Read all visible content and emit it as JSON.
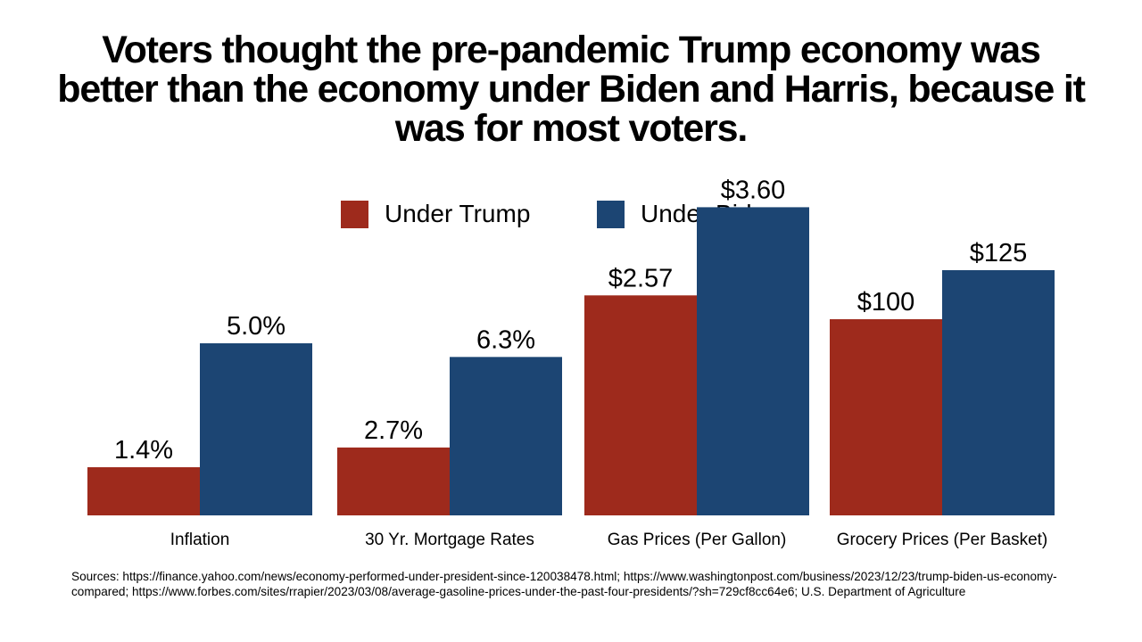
{
  "title_lines": [
    "Voters thought the pre-pandemic Trump economy was",
    "better than the economy under Biden and Harris, because it",
    "was for most voters."
  ],
  "sources": "Sources:  https://finance.yahoo.com/news/economy-performed-under-president-since-120038478.html; https://www.washingtonpost.com/business/2023/12/23/trump-biden-us-economy-compared; https://www.forbes.com/sites/rrapier/2023/03/08/average-gasoline-prices-under-the-past-four-presidents/?sh=729cf8cc64e6; U.S. Department of Agriculture",
  "colors": {
    "trump": "#9e2a1c",
    "biden": "#1c4573"
  },
  "chart_data": {
    "type": "bar",
    "title": "Voters thought the pre-pandemic Trump economy was better than the economy under Biden and Harris, because it was for most voters.",
    "legend_position": "top-center",
    "grid": false,
    "categories": [
      "Inflation",
      "30 Yr. Mortgage Rates",
      "Gas Prices (Per Gallon)",
      "Grocery Prices (Per Basket)"
    ],
    "series": [
      {
        "name": "Under Trump",
        "color": "#9e2a1c",
        "values": [
          1.4,
          2.7,
          2.57,
          100
        ],
        "labels": [
          "1.4%",
          "2.7%",
          "$2.57",
          "$100"
        ]
      },
      {
        "name": "Under Biden",
        "color": "#1c4573",
        "values": [
          5.0,
          6.3,
          3.6,
          125
        ],
        "labels": [
          "5.0%",
          "6.3%",
          "$3.60",
          "$125"
        ]
      }
    ]
  }
}
